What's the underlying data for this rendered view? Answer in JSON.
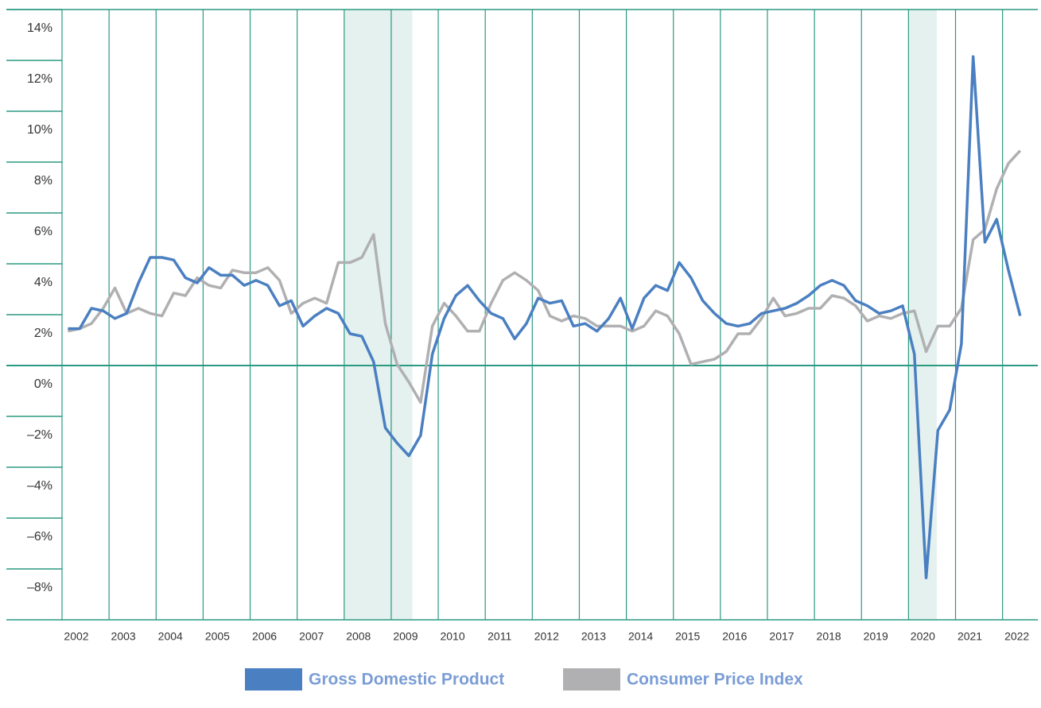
{
  "chart_data": {
    "type": "line",
    "x": [
      2002.125,
      2002.375,
      2002.625,
      2002.875,
      2003.125,
      2003.375,
      2003.625,
      2003.875,
      2004.125,
      2004.375,
      2004.625,
      2004.875,
      2005.125,
      2005.375,
      2005.625,
      2005.875,
      2006.125,
      2006.375,
      2006.625,
      2006.875,
      2007.125,
      2007.375,
      2007.625,
      2007.875,
      2008.125,
      2008.375,
      2008.625,
      2008.875,
      2009.125,
      2009.375,
      2009.625,
      2009.875,
      2010.125,
      2010.375,
      2010.625,
      2010.875,
      2011.125,
      2011.375,
      2011.625,
      2011.875,
      2012.125,
      2012.375,
      2012.625,
      2012.875,
      2013.125,
      2013.375,
      2013.625,
      2013.875,
      2014.125,
      2014.375,
      2014.625,
      2014.875,
      2015.125,
      2015.375,
      2015.625,
      2015.875,
      2016.125,
      2016.375,
      2016.625,
      2016.875,
      2017.125,
      2017.375,
      2017.625,
      2017.875,
      2018.125,
      2018.375,
      2018.625,
      2018.875,
      2019.125,
      2019.375,
      2019.625,
      2019.875,
      2020.125,
      2020.375,
      2020.625,
      2020.875,
      2021.125,
      2021.375,
      2021.625,
      2021.875,
      2022.125,
      2022.375
    ],
    "series": [
      {
        "name": "Gross Domestic Product",
        "color": "#4a7fc1",
        "values": [
          2.2,
          2.2,
          3.0,
          2.9,
          2.6,
          2.8,
          4.0,
          5.0,
          5.0,
          4.9,
          4.2,
          4.0,
          4.6,
          4.3,
          4.3,
          3.9,
          4.1,
          3.9,
          3.1,
          3.3,
          2.3,
          2.7,
          3.0,
          2.8,
          2.0,
          1.9,
          0.9,
          -1.7,
          -2.3,
          -2.8,
          -2.0,
          1.2,
          2.6,
          3.5,
          3.9,
          3.3,
          2.8,
          2.6,
          1.8,
          2.4,
          3.4,
          3.2,
          3.3,
          2.3,
          2.4,
          2.1,
          2.6,
          3.4,
          2.2,
          3.4,
          3.9,
          3.7,
          4.8,
          4.2,
          3.3,
          2.8,
          2.4,
          2.3,
          2.4,
          2.8,
          2.9,
          3.0,
          3.2,
          3.5,
          3.9,
          4.1,
          3.9,
          3.3,
          3.1,
          2.8,
          2.9,
          3.1,
          1.2,
          -7.6,
          -1.8,
          -1.0,
          1.6,
          12.9,
          5.6,
          6.5,
          4.5,
          2.7
        ]
      },
      {
        "name": "Consumer Price Index",
        "color": "#b0b0b2",
        "values": [
          2.1,
          2.2,
          2.4,
          3.0,
          3.8,
          2.8,
          3.0,
          2.8,
          2.7,
          3.6,
          3.5,
          4.2,
          3.9,
          3.8,
          4.5,
          4.4,
          4.4,
          4.6,
          4.1,
          2.8,
          3.2,
          3.4,
          3.2,
          4.8,
          4.8,
          5.0,
          5.9,
          2.4,
          0.8,
          0.1,
          -0.7,
          2.3,
          3.2,
          2.7,
          2.1,
          2.1,
          3.2,
          4.1,
          4.4,
          4.1,
          3.7,
          2.7,
          2.5,
          2.7,
          2.6,
          2.3,
          2.3,
          2.3,
          2.1,
          2.3,
          2.9,
          2.7,
          2.0,
          0.8,
          0.9,
          1.0,
          1.3,
          2.0,
          2.0,
          2.6,
          3.4,
          2.7,
          2.8,
          3.0,
          3.0,
          3.5,
          3.4,
          3.1,
          2.5,
          2.7,
          2.6,
          2.8,
          2.9,
          1.3,
          2.3,
          2.3,
          3.0,
          5.7,
          6.1,
          7.7,
          8.7,
          9.2
        ]
      }
    ],
    "xlim": [
      2002,
      2022.75
    ],
    "xticks": [
      2002,
      2003,
      2004,
      2005,
      2006,
      2007,
      2008,
      2009,
      2010,
      2011,
      2012,
      2013,
      2014,
      2015,
      2016,
      2017,
      2018,
      2019,
      2020,
      2021,
      2022
    ],
    "ylim": [
      -9.25,
      14.75
    ],
    "yticks": [
      {
        "value": 14,
        "label": "14%"
      },
      {
        "value": 12,
        "label": "12%"
      },
      {
        "value": 10,
        "label": "10%"
      },
      {
        "value": 8,
        "label": "8%"
      },
      {
        "value": 6,
        "label": "6%"
      },
      {
        "value": 4,
        "label": "4%"
      },
      {
        "value": 2,
        "label": "2%"
      },
      {
        "value": 0,
        "label": "0%"
      },
      {
        "value": -2,
        "label": "–2%"
      },
      {
        "value": -4,
        "label": "–4%"
      },
      {
        "value": -6,
        "label": "–6%"
      },
      {
        "value": -8,
        "label": "–8%"
      }
    ],
    "shaded_regions": [
      [
        2008,
        2009.45
      ],
      [
        2020,
        2020.6
      ]
    ],
    "grid": true
  }
}
